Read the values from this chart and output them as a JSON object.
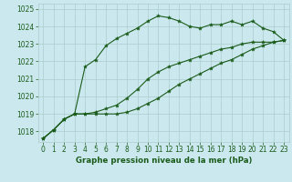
{
  "title": "Graphe pression niveau de la mer (hPa)",
  "background_color": "#cce8ef",
  "grid_color": "#aacccc",
  "line_color": "#1a5c1a",
  "xlim": [
    -0.5,
    23.5
  ],
  "ylim": [
    1017.4,
    1025.3
  ],
  "yticks": [
    1018,
    1019,
    1020,
    1021,
    1022,
    1023,
    1024,
    1025
  ],
  "xticks": [
    0,
    1,
    2,
    3,
    4,
    5,
    6,
    7,
    8,
    9,
    10,
    11,
    12,
    13,
    14,
    15,
    16,
    17,
    18,
    19,
    20,
    21,
    22,
    23
  ],
  "series1_x": [
    0,
    1,
    2,
    3,
    4,
    5,
    6,
    7,
    8,
    9,
    10,
    11,
    12,
    13,
    14,
    15,
    16,
    17,
    18,
    19,
    20,
    21,
    22,
    23
  ],
  "series1_y": [
    1017.6,
    1018.1,
    1018.7,
    1019.0,
    1021.7,
    1022.1,
    1022.9,
    1023.3,
    1023.6,
    1023.9,
    1024.3,
    1024.6,
    1024.5,
    1024.3,
    1024.0,
    1023.9,
    1024.1,
    1024.1,
    1024.3,
    1024.1,
    1024.3,
    1023.9,
    1023.7,
    1023.2
  ],
  "series2_x": [
    0,
    1,
    2,
    3,
    4,
    5,
    6,
    7,
    8,
    9,
    10,
    11,
    12,
    13,
    14,
    15,
    16,
    17,
    18,
    19,
    20,
    21,
    22,
    23
  ],
  "series2_y": [
    1017.6,
    1018.1,
    1018.7,
    1019.0,
    1019.0,
    1019.1,
    1019.3,
    1019.5,
    1019.9,
    1020.4,
    1021.0,
    1021.4,
    1021.7,
    1021.9,
    1022.1,
    1022.3,
    1022.5,
    1022.7,
    1022.8,
    1023.0,
    1023.1,
    1023.1,
    1023.1,
    1023.2
  ],
  "series3_x": [
    0,
    1,
    2,
    3,
    4,
    5,
    6,
    7,
    8,
    9,
    10,
    11,
    12,
    13,
    14,
    15,
    16,
    17,
    18,
    19,
    20,
    21,
    22,
    23
  ],
  "series3_y": [
    1017.6,
    1018.1,
    1018.7,
    1019.0,
    1019.0,
    1019.0,
    1019.0,
    1019.0,
    1019.1,
    1019.3,
    1019.6,
    1019.9,
    1020.3,
    1020.7,
    1021.0,
    1021.3,
    1021.6,
    1021.9,
    1022.1,
    1022.4,
    1022.7,
    1022.9,
    1023.1,
    1023.2
  ],
  "tick_fontsize": 5.5,
  "label_fontsize": 6.2
}
